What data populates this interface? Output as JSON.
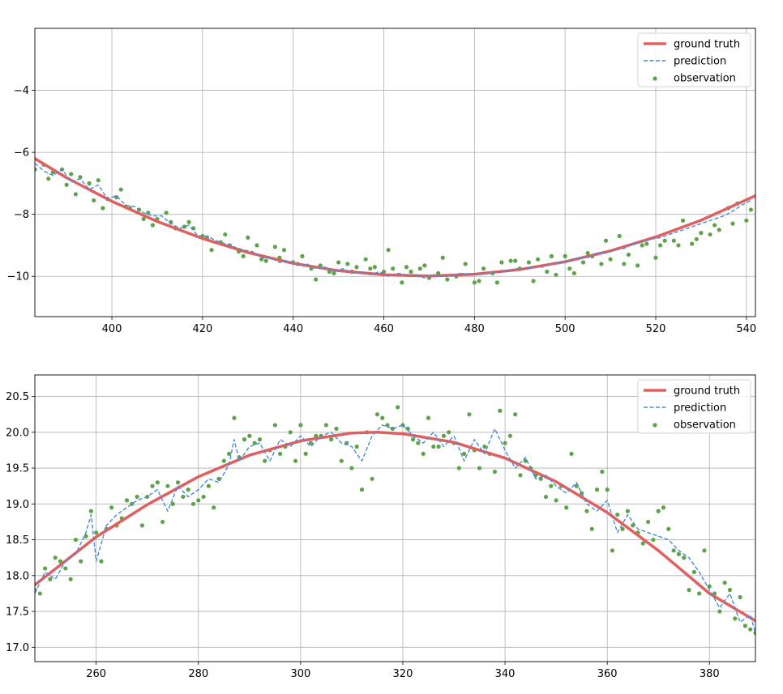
{
  "chart_data": [
    {
      "type": "line",
      "title": "",
      "xlabel": "",
      "ylabel": "",
      "xlim": [
        383,
        542
      ],
      "ylim": [
        -11.3,
        -2.0
      ],
      "xticks": [
        400,
        420,
        440,
        460,
        480,
        500,
        520,
        540
      ],
      "yticks": [
        -10,
        -8,
        -6,
        -4
      ],
      "grid": true,
      "legend_position": "top-right",
      "legend": [
        "ground truth",
        "prediction",
        "observation"
      ],
      "colors": {
        "ground_truth": "#e06060",
        "prediction": "#4a8ad8",
        "observation": "#5ea24a"
      },
      "series": [
        {
          "name": "ground truth",
          "style": "solid",
          "x": [
            383,
            390,
            400,
            410,
            420,
            430,
            440,
            450,
            460,
            470,
            480,
            490,
            500,
            510,
            520,
            530,
            542
          ],
          "y": [
            -6.2,
            -6.82,
            -7.58,
            -8.23,
            -8.78,
            -9.23,
            -9.58,
            -9.82,
            -9.95,
            -9.99,
            -9.93,
            -9.78,
            -9.53,
            -9.18,
            -8.73,
            -8.19,
            -7.4
          ]
        },
        {
          "name": "prediction",
          "style": "dashed",
          "x": [
            383,
            385,
            387,
            389,
            391,
            393,
            395,
            397,
            399,
            401,
            403,
            405,
            407,
            409,
            411,
            413,
            415,
            417,
            419,
            421,
            423,
            425,
            427,
            429,
            431,
            433,
            435,
            437,
            439,
            441,
            443,
            445,
            447,
            449,
            451,
            453,
            455,
            457,
            459,
            461,
            463,
            465,
            467,
            469,
            471,
            473,
            475,
            477,
            479,
            481,
            483,
            485,
            487,
            489,
            491,
            493,
            495,
            497,
            499,
            501,
            503,
            505,
            507,
            509,
            511,
            513,
            515,
            517,
            519,
            521,
            523,
            525,
            527,
            529,
            531,
            533,
            535,
            537,
            539,
            541
          ],
          "y": [
            -6.35,
            -6.6,
            -6.75,
            -6.55,
            -6.95,
            -6.85,
            -7.2,
            -7.05,
            -7.5,
            -7.4,
            -7.7,
            -7.75,
            -7.95,
            -8.05,
            -8.05,
            -8.3,
            -8.45,
            -8.35,
            -8.7,
            -8.7,
            -8.85,
            -8.95,
            -9.05,
            -9.15,
            -9.2,
            -9.4,
            -9.4,
            -9.55,
            -9.5,
            -9.65,
            -9.6,
            -9.75,
            -9.7,
            -9.85,
            -9.75,
            -9.9,
            -9.85,
            -9.95,
            -9.85,
            -10.0,
            -9.9,
            -9.95,
            -9.95,
            -10.05,
            -9.95,
            -10.0,
            -10.0,
            -9.9,
            -9.95,
            -9.95,
            -9.9,
            -9.85,
            -9.85,
            -9.75,
            -9.75,
            -9.7,
            -9.7,
            -9.6,
            -9.55,
            -9.5,
            -9.4,
            -9.4,
            -9.25,
            -9.25,
            -9.15,
            -9.1,
            -8.95,
            -8.9,
            -8.8,
            -8.75,
            -8.65,
            -8.55,
            -8.45,
            -8.35,
            -8.25,
            -8.15,
            -8.05,
            -7.9,
            -7.7,
            -7.55
          ]
        },
        {
          "name": "observation",
          "style": "points",
          "x": [
            383,
            385,
            386,
            387,
            389,
            390,
            391,
            392,
            393,
            395,
            396,
            397,
            398,
            399,
            401,
            402,
            403,
            404,
            406,
            407,
            408,
            409,
            410,
            412,
            413,
            414,
            416,
            417,
            418,
            420,
            421,
            422,
            424,
            425,
            426,
            428,
            429,
            430,
            432,
            433,
            434,
            436,
            437,
            438,
            440,
            441,
            442,
            444,
            445,
            446,
            448,
            449,
            450,
            452,
            453,
            454,
            456,
            457,
            458,
            460,
            461,
            462,
            464,
            465,
            466,
            468,
            469,
            470,
            472,
            473,
            474,
            476,
            477,
            478,
            480,
            481,
            482,
            484,
            485,
            486,
            488,
            489,
            490,
            492,
            493,
            494,
            496,
            497,
            498,
            500,
            501,
            502,
            504,
            505,
            506,
            508,
            509,
            510,
            512,
            513,
            514,
            516,
            517,
            518,
            520,
            521,
            522,
            524,
            525,
            526,
            528,
            529,
            530,
            532,
            533,
            534,
            536,
            537,
            538,
            540,
            541
          ],
          "y": [
            -6.55,
            -6.4,
            -6.85,
            -6.65,
            -6.55,
            -7.05,
            -6.7,
            -7.35,
            -6.8,
            -7.0,
            -7.55,
            -6.9,
            -7.8,
            -7.5,
            -7.45,
            -7.2,
            -7.75,
            -7.8,
            -7.85,
            -8.15,
            -7.95,
            -8.35,
            -8.15,
            -7.95,
            -8.25,
            -8.45,
            -8.4,
            -8.25,
            -8.45,
            -8.7,
            -8.75,
            -9.15,
            -8.9,
            -8.65,
            -9.0,
            -9.2,
            -9.35,
            -8.75,
            -9.0,
            -9.45,
            -9.5,
            -9.05,
            -9.4,
            -9.15,
            -9.55,
            -9.6,
            -9.35,
            -9.75,
            -10.1,
            -9.65,
            -9.85,
            -9.9,
            -9.55,
            -9.6,
            -9.85,
            -9.7,
            -9.45,
            -9.75,
            -9.7,
            -9.85,
            -9.15,
            -9.75,
            -10.2,
            -9.7,
            -9.85,
            -9.75,
            -9.65,
            -10.05,
            -9.9,
            -9.4,
            -10.1,
            -10.0,
            -9.95,
            -9.6,
            -10.2,
            -10.15,
            -9.75,
            -9.9,
            -10.2,
            -9.55,
            -9.5,
            -9.5,
            -9.75,
            -9.55,
            -10.15,
            -9.45,
            -9.85,
            -9.35,
            -9.95,
            -9.35,
            -9.75,
            -9.9,
            -9.55,
            -9.25,
            -9.35,
            -9.6,
            -8.85,
            -9.45,
            -8.7,
            -9.6,
            -9.3,
            -9.65,
            -9.0,
            -8.95,
            -9.4,
            -9.0,
            -8.85,
            -8.85,
            -9.0,
            -8.2,
            -8.95,
            -8.8,
            -8.6,
            -8.65,
            -8.35,
            -8.5,
            -7.8,
            -8.3,
            -7.65,
            -8.2,
            -7.85
          ]
        }
      ]
    },
    {
      "type": "line",
      "title": "",
      "xlabel": "",
      "ylabel": "",
      "xlim": [
        248,
        389
      ],
      "ylim": [
        16.8,
        20.8
      ],
      "xticks": [
        260,
        280,
        300,
        320,
        340,
        360,
        380
      ],
      "yticks": [
        17.0,
        17.5,
        18.0,
        18.5,
        19.0,
        19.5,
        20.0,
        20.5
      ],
      "ytick_labels": [
        "17.0",
        "17.5",
        "18.0",
        "18.5",
        "19.0",
        "19.5",
        "20.0",
        "20.5"
      ],
      "grid": true,
      "legend_position": "top-right",
      "legend": [
        "ground truth",
        "prediction",
        "observation"
      ],
      "colors": {
        "ground_truth": "#e06060",
        "prediction": "#4a8ad8",
        "observation": "#5ea24a"
      },
      "series": [
        {
          "name": "ground truth",
          "style": "solid",
          "x": [
            248,
            255,
            260,
            270,
            280,
            290,
            300,
            310,
            315,
            320,
            330,
            340,
            350,
            360,
            370,
            380,
            389
          ],
          "y": [
            17.87,
            18.26,
            18.54,
            18.99,
            19.38,
            19.68,
            19.88,
            19.99,
            20.0,
            19.98,
            19.86,
            19.64,
            19.31,
            18.88,
            18.35,
            17.75,
            17.37
          ]
        },
        {
          "name": "prediction",
          "style": "dashed",
          "x": [
            248,
            250,
            252,
            254,
            256,
            258,
            259,
            260,
            262,
            264,
            266,
            268,
            270,
            272,
            274,
            276,
            278,
            280,
            282,
            284,
            286,
            287,
            288,
            290,
            292,
            294,
            296,
            298,
            300,
            302,
            304,
            306,
            308,
            310,
            312,
            314,
            316,
            318,
            320,
            322,
            324,
            326,
            328,
            330,
            332,
            334,
            336,
            338,
            340,
            342,
            344,
            346,
            348,
            350,
            352,
            354,
            356,
            358,
            360,
            362,
            364,
            366,
            368,
            370,
            372,
            374,
            376,
            378,
            380,
            382,
            384,
            386,
            388,
            389
          ],
          "y": [
            17.75,
            18.05,
            17.95,
            18.2,
            18.3,
            18.6,
            18.85,
            18.2,
            18.7,
            18.85,
            18.95,
            19.05,
            19.1,
            19.2,
            18.9,
            19.25,
            19.1,
            19.2,
            19.35,
            19.3,
            19.55,
            19.9,
            19.6,
            19.8,
            19.85,
            19.6,
            19.9,
            19.8,
            19.95,
            19.8,
            19.95,
            20.0,
            19.85,
            19.8,
            19.6,
            19.95,
            20.1,
            20.05,
            20.1,
            19.95,
            19.85,
            20.0,
            19.8,
            19.95,
            19.6,
            19.9,
            19.7,
            20.05,
            19.75,
            19.5,
            19.65,
            19.35,
            19.4,
            19.25,
            19.15,
            19.3,
            19.0,
            18.9,
            19.05,
            18.6,
            18.85,
            18.65,
            18.6,
            18.55,
            18.5,
            18.35,
            18.25,
            18.05,
            17.8,
            17.55,
            17.75,
            17.35,
            17.45,
            17.2
          ]
        },
        {
          "name": "observation",
          "style": "points",
          "x": [
            248,
            249,
            250,
            251,
            252,
            253,
            254,
            255,
            256,
            257,
            258,
            259,
            260,
            261,
            262,
            263,
            264,
            265,
            266,
            267,
            268,
            269,
            270,
            271,
            272,
            273,
            274,
            275,
            276,
            277,
            278,
            279,
            280,
            281,
            282,
            283,
            284,
            285,
            286,
            287,
            288,
            289,
            290,
            291,
            292,
            293,
            294,
            295,
            296,
            297,
            298,
            299,
            300,
            301,
            302,
            303,
            304,
            305,
            306,
            307,
            308,
            309,
            310,
            311,
            312,
            313,
            314,
            315,
            316,
            317,
            318,
            319,
            320,
            321,
            322,
            323,
            324,
            325,
            326,
            327,
            328,
            329,
            330,
            331,
            332,
            333,
            334,
            335,
            336,
            337,
            338,
            339,
            340,
            341,
            342,
            343,
            344,
            345,
            346,
            347,
            348,
            349,
            350,
            351,
            352,
            353,
            354,
            355,
            356,
            357,
            358,
            359,
            360,
            361,
            362,
            363,
            364,
            365,
            366,
            367,
            368,
            369,
            370,
            371,
            372,
            373,
            374,
            375,
            376,
            377,
            378,
            379,
            380,
            381,
            382,
            383,
            384,
            385,
            386,
            387,
            388,
            389
          ],
          "y": [
            17.8,
            17.75,
            18.1,
            17.95,
            18.25,
            18.2,
            18.1,
            17.95,
            18.5,
            18.2,
            18.55,
            18.9,
            18.6,
            18.2,
            18.65,
            18.95,
            18.7,
            18.8,
            19.05,
            19.0,
            19.1,
            18.7,
            19.1,
            19.25,
            19.3,
            18.75,
            19.25,
            19.0,
            19.3,
            19.1,
            19.2,
            19.0,
            19.05,
            19.1,
            19.25,
            18.95,
            19.35,
            19.6,
            19.7,
            20.2,
            19.65,
            19.9,
            19.95,
            19.85,
            19.9,
            19.6,
            19.75,
            20.1,
            19.7,
            19.8,
            20.0,
            19.6,
            20.1,
            19.7,
            19.85,
            19.95,
            19.95,
            20.1,
            19.9,
            20.05,
            19.6,
            19.85,
            19.5,
            19.8,
            19.2,
            20.0,
            19.35,
            20.25,
            20.2,
            20.1,
            20.05,
            20.35,
            20.1,
            20.05,
            19.9,
            19.85,
            19.7,
            20.2,
            19.8,
            19.8,
            19.95,
            20.0,
            19.85,
            19.5,
            19.7,
            20.25,
            19.75,
            19.5,
            19.8,
            19.7,
            19.45,
            20.3,
            19.85,
            19.95,
            20.25,
            19.4,
            19.6,
            19.5,
            19.4,
            19.35,
            19.1,
            19.25,
            19.05,
            19.25,
            18.95,
            19.7,
            19.25,
            19.15,
            18.9,
            18.65,
            19.2,
            19.45,
            19.2,
            18.35,
            18.85,
            18.65,
            18.9,
            18.7,
            18.6,
            18.45,
            18.75,
            18.5,
            18.9,
            18.95,
            18.65,
            18.35,
            18.3,
            18.25,
            17.8,
            18.05,
            17.75,
            18.35,
            17.85,
            17.75,
            17.5,
            17.9,
            17.8,
            17.4,
            17.7,
            17.3,
            17.25,
            17.2
          ]
        }
      ]
    }
  ]
}
